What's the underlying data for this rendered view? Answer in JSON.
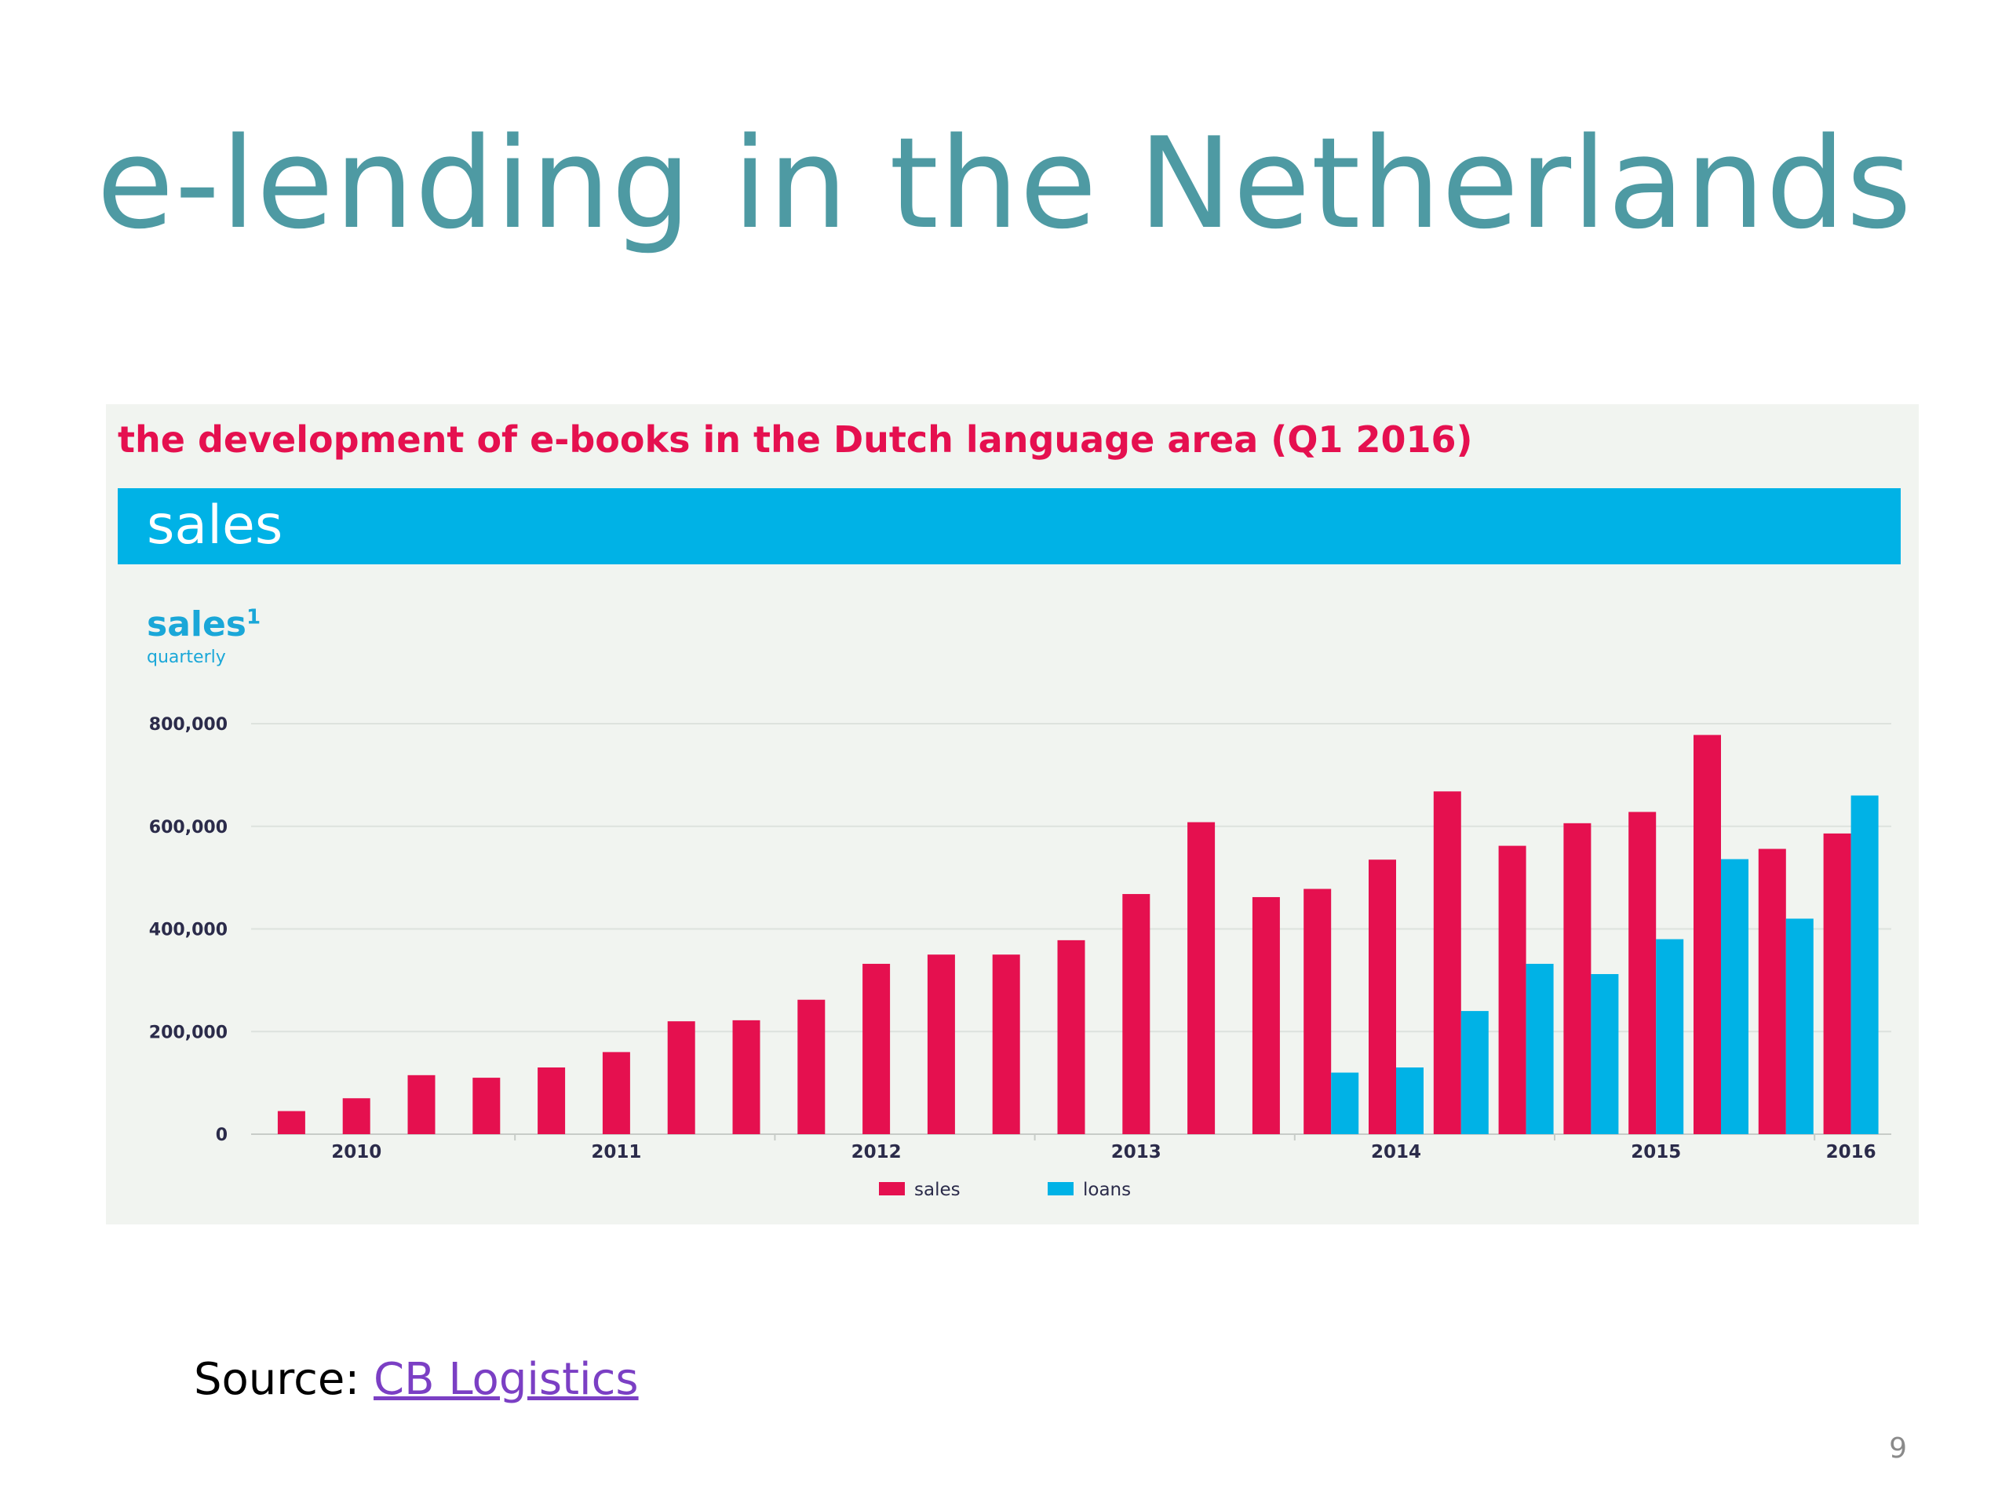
{
  "slide": {
    "title": "e-lending in the Netherlands",
    "source_label": "Source:",
    "source_link_text": "CB Logistics",
    "page_number": "9"
  },
  "panel": {
    "heading": "the development of e-books in the Dutch language area (Q1 2016)",
    "section_label": "sales",
    "chart_label": "sales",
    "chart_label_sup": "1",
    "chart_sublabel": "quarterly"
  },
  "colors": {
    "sales": "#e5104f",
    "loans": "#00b2e6",
    "title": "#4e9aa3"
  },
  "chart_data": {
    "type": "bar",
    "ylim": [
      0,
      800000
    ],
    "yticks": [
      0,
      200000,
      400000,
      600000,
      800000
    ],
    "ytick_labels": [
      "0",
      "200,000",
      "400,000",
      "600,000",
      "800,000"
    ],
    "x_year_labels": [
      {
        "label": "2010",
        "after_quarter": 1.5
      },
      {
        "label": "2011",
        "after_quarter": 5.5
      },
      {
        "label": "2012",
        "after_quarter": 9.5
      },
      {
        "label": "2013",
        "after_quarter": 13.5
      },
      {
        "label": "2014",
        "after_quarter": 17.5
      },
      {
        "label": "2015",
        "after_quarter": 21.5
      },
      {
        "label": "2016",
        "after_quarter": 24
      }
    ],
    "quarter_count": 25,
    "legend_position": "bottom-center",
    "series": [
      {
        "name": "sales",
        "values": [
          45000,
          70000,
          115000,
          110000,
          130000,
          160000,
          220000,
          222000,
          262000,
          332000,
          350000,
          350000,
          378000,
          468000,
          608000,
          462000,
          478000,
          535000,
          668000,
          562000,
          606000,
          628000,
          778000,
          556000,
          586000
        ]
      },
      {
        "name": "loans",
        "values": [
          null,
          null,
          null,
          null,
          null,
          null,
          null,
          null,
          null,
          null,
          null,
          null,
          null,
          null,
          null,
          null,
          120000,
          130000,
          240000,
          332000,
          312000,
          380000,
          536000,
          420000,
          660000
        ]
      }
    ]
  }
}
